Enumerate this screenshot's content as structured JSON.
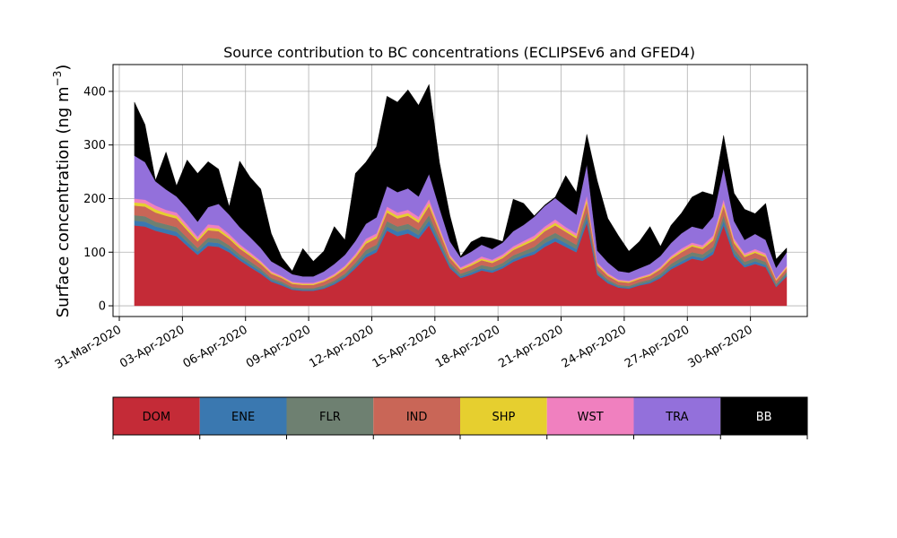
{
  "chart_data": {
    "type": "area",
    "stacked": true,
    "title": "Source contribution to BC concentrations (ECLIPSEv6 and GFED4)",
    "ylabel_main": "Surface concentration (ng m",
    "ylabel_sup": "−3",
    "ylabel_close": ")",
    "xlabel": "",
    "x_range": [
      "2020-03-31",
      "2020-05-03"
    ],
    "ylim": [
      -20,
      450
    ],
    "x_tick_labels": [
      "31-Mar-2020",
      "03-Apr-2020",
      "06-Apr-2020",
      "09-Apr-2020",
      "12-Apr-2020",
      "15-Apr-2020",
      "18-Apr-2020",
      "21-Apr-2020",
      "24-Apr-2020",
      "27-Apr-2020",
      "30-Apr-2020"
    ],
    "y_ticks": [
      0,
      100,
      200,
      300,
      400
    ],
    "grid": true,
    "x": [
      "2020-04-01",
      "2020-04-01",
      "2020-04-02",
      "2020-04-02",
      "2020-04-03",
      "2020-04-03",
      "2020-04-04",
      "2020-04-04",
      "2020-04-05",
      "2020-04-05",
      "2020-04-06",
      "2020-04-06",
      "2020-04-07",
      "2020-04-07",
      "2020-04-08",
      "2020-04-08",
      "2020-04-09",
      "2020-04-09",
      "2020-04-10",
      "2020-04-10",
      "2020-04-11",
      "2020-04-11",
      "2020-04-12",
      "2020-04-12",
      "2020-04-13",
      "2020-04-13",
      "2020-04-14",
      "2020-04-14",
      "2020-04-15",
      "2020-04-15",
      "2020-04-16",
      "2020-04-16",
      "2020-04-17",
      "2020-04-17",
      "2020-04-18",
      "2020-04-18",
      "2020-04-19",
      "2020-04-19",
      "2020-04-20",
      "2020-04-20",
      "2020-04-21",
      "2020-04-21",
      "2020-04-22",
      "2020-04-22",
      "2020-04-23",
      "2020-04-23",
      "2020-04-24",
      "2020-04-24",
      "2020-04-25",
      "2020-04-25",
      "2020-04-26",
      "2020-04-26",
      "2020-04-27",
      "2020-04-27",
      "2020-04-28",
      "2020-04-28",
      "2020-04-29",
      "2020-04-29",
      "2020-04-30",
      "2020-04-30",
      "2020-05-01",
      "2020-05-01",
      "2020-05-02"
    ],
    "series": [
      {
        "name": "DOM",
        "color": "#c42b37",
        "values": [
          150,
          148,
          140,
          135,
          130,
          112,
          95,
          112,
          110,
          100,
          85,
          72,
          60,
          45,
          38,
          30,
          28,
          28,
          32,
          40,
          52,
          70,
          90,
          100,
          140,
          130,
          135,
          125,
          150,
          110,
          70,
          52,
          58,
          66,
          62,
          70,
          82,
          90,
          96,
          110,
          120,
          110,
          100,
          155,
          58,
          42,
          34,
          32,
          38,
          42,
          52,
          68,
          78,
          88,
          84,
          96,
          150,
          92,
          72,
          78,
          72,
          35,
          55
        ]
      },
      {
        "name": "ENE",
        "color": "#3a78b0",
        "values": [
          9,
          9,
          8,
          8,
          8,
          7,
          6,
          7,
          7,
          6,
          5,
          5,
          4,
          3,
          3,
          2,
          2,
          2,
          2,
          3,
          3,
          4,
          6,
          6,
          8,
          8,
          8,
          7,
          9,
          7,
          4,
          3,
          4,
          4,
          4,
          4,
          5,
          5,
          6,
          7,
          7,
          7,
          6,
          9,
          4,
          3,
          2,
          2,
          2,
          3,
          3,
          4,
          5,
          5,
          5,
          6,
          9,
          6,
          4,
          5,
          4,
          2,
          3
        ]
      },
      {
        "name": "FLR",
        "color": "#6e8071",
        "values": [
          10,
          10,
          9,
          9,
          9,
          8,
          7,
          8,
          8,
          7,
          6,
          6,
          5,
          4,
          4,
          3,
          3,
          3,
          4,
          4,
          5,
          6,
          8,
          8,
          10,
          10,
          10,
          9,
          10,
          8,
          6,
          5,
          5,
          6,
          6,
          6,
          7,
          7,
          8,
          9,
          9,
          8,
          8,
          11,
          5,
          4,
          3,
          3,
          4,
          4,
          5,
          6,
          7,
          7,
          7,
          8,
          10,
          8,
          6,
          6,
          6,
          4,
          5
        ]
      },
      {
        "name": "IND",
        "color": "#c96657",
        "values": [
          18,
          18,
          17,
          16,
          16,
          14,
          12,
          14,
          14,
          12,
          11,
          10,
          9,
          8,
          7,
          6,
          6,
          6,
          7,
          8,
          9,
          10,
          12,
          12,
          16,
          15,
          15,
          14,
          17,
          13,
          9,
          7,
          8,
          9,
          8,
          9,
          10,
          11,
          12,
          13,
          14,
          13,
          12,
          18,
          8,
          7,
          6,
          6,
          6,
          7,
          8,
          9,
          10,
          11,
          10,
          12,
          17,
          11,
          9,
          10,
          9,
          6,
          7
        ]
      },
      {
        "name": "SHP",
        "color": "#e6cf2f",
        "values": [
          6,
          6,
          6,
          5,
          5,
          5,
          4,
          5,
          5,
          4,
          4,
          3,
          3,
          2,
          2,
          2,
          2,
          2,
          2,
          2,
          3,
          3,
          4,
          4,
          5,
          5,
          5,
          5,
          6,
          4,
          3,
          2,
          3,
          3,
          3,
          3,
          3,
          4,
          4,
          4,
          5,
          4,
          4,
          6,
          3,
          2,
          2,
          2,
          2,
          2,
          2,
          3,
          3,
          3,
          3,
          4,
          6,
          4,
          3,
          3,
          3,
          2,
          2
        ]
      },
      {
        "name": "WST",
        "color": "#f080bf",
        "values": [
          7,
          7,
          7,
          6,
          6,
          6,
          5,
          6,
          6,
          5,
          4,
          4,
          3,
          3,
          2,
          2,
          2,
          2,
          2,
          3,
          3,
          4,
          5,
          5,
          6,
          6,
          6,
          6,
          7,
          5,
          3,
          3,
          3,
          4,
          3,
          4,
          4,
          4,
          5,
          5,
          6,
          5,
          5,
          7,
          3,
          3,
          2,
          2,
          2,
          2,
          3,
          3,
          4,
          4,
          4,
          5,
          7,
          5,
          4,
          4,
          4,
          2,
          3
        ]
      },
      {
        "name": "TRA",
        "color": "#9370db",
        "values": [
          80,
          70,
          45,
          38,
          30,
          30,
          28,
          32,
          40,
          36,
          32,
          28,
          24,
          18,
          16,
          14,
          12,
          12,
          15,
          18,
          20,
          24,
          28,
          30,
          38,
          38,
          40,
          38,
          47,
          35,
          25,
          18,
          20,
          22,
          20,
          22,
          28,
          30,
          35,
          38,
          40,
          38,
          35,
          58,
          22,
          20,
          16,
          15,
          16,
          18,
          20,
          24,
          28,
          30,
          30,
          35,
          58,
          32,
          25,
          28,
          25,
          20,
          25
        ]
      },
      {
        "name": "BB",
        "color": "#000000",
        "values": [
          100,
          70,
          2,
          70,
          20,
          90,
          90,
          85,
          65,
          15,
          123,
          112,
          110,
          52,
          18,
          6,
          52,
          28,
          38,
          70,
          28,
          126,
          115,
          132,
          168,
          168,
          184,
          170,
          167,
          85,
          48,
          2,
          18,
          15,
          20,
          2,
          60,
          40,
          2,
          2,
          2,
          58,
          42,
          56,
          130,
          82,
          66,
          40,
          50,
          70,
          18,
          33,
          38,
          55,
          70,
          41,
          61,
          52,
          57,
          38,
          68,
          16,
          8
        ]
      }
    ]
  },
  "legend": {
    "items": [
      {
        "label": "DOM",
        "color": "#c42b37",
        "text_color": "#000000"
      },
      {
        "label": "ENE",
        "color": "#3a78b0",
        "text_color": "#000000"
      },
      {
        "label": "FLR",
        "color": "#6e8071",
        "text_color": "#000000"
      },
      {
        "label": "IND",
        "color": "#c96657",
        "text_color": "#000000"
      },
      {
        "label": "SHP",
        "color": "#e6cf2f",
        "text_color": "#000000"
      },
      {
        "label": "WST",
        "color": "#f080bf",
        "text_color": "#000000"
      },
      {
        "label": "TRA",
        "color": "#9370db",
        "text_color": "#000000"
      },
      {
        "label": "BB",
        "color": "#000000",
        "text_color": "#ffffff"
      }
    ]
  }
}
